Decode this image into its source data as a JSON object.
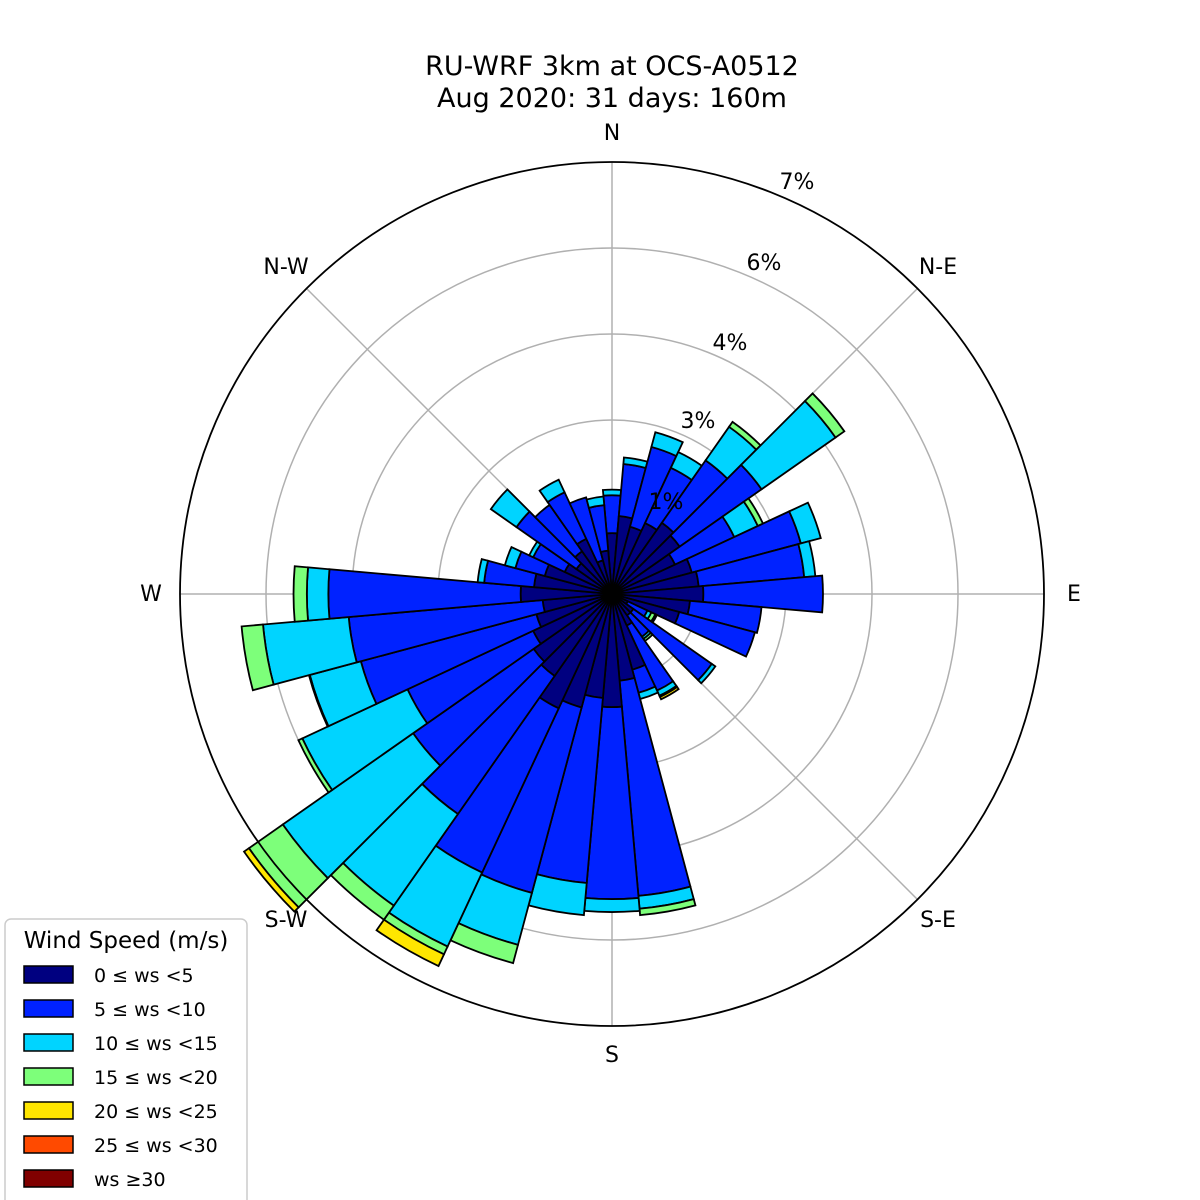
{
  "chart_data": {
    "type": "windrose",
    "title_line1": "RU-WRF 3km at OCS-A0512",
    "title_line2": "Aug 2020: 31 days: 160m",
    "direction_labels": [
      "N",
      "N-E",
      "E",
      "S-E",
      "S",
      "S-W",
      "W",
      "N-W"
    ],
    "ring_labels": [
      "1%",
      "3%",
      "4%",
      "6%",
      "7%"
    ],
    "grid": true,
    "legend_position": "bottom-left",
    "legend_title": "Wind Speed (m/s)",
    "bins": [
      {
        "label": "0 ≤  ws <5",
        "color": "#000080"
      },
      {
        "label": "5 ≤  ws <10",
        "color": "#0022ff"
      },
      {
        "label": "10 ≤  ws <15",
        "color": "#00d4ff"
      },
      {
        "label": "15 ≤  ws <20",
        "color": "#7dff7a"
      },
      {
        "label": "20 ≤  ws <25",
        "color": "#ffe600"
      },
      {
        "label": "25 ≤  ws <30",
        "color": "#ff4a00"
      },
      {
        "label": "ws ≥30",
        "color": "#800000"
      }
    ],
    "sector_width_deg": 10,
    "sectors": [
      {
        "dir": 0,
        "cum": [
          0.7,
          1.27,
          1.4
        ]
      },
      {
        "dir": 10,
        "cum": [
          0.9,
          2.0,
          2.15
        ]
      },
      {
        "dir": 20,
        "cum": [
          0.8,
          2.5,
          2.85
        ]
      },
      {
        "dir": 30,
        "cum": [
          0.9,
          2.2,
          2.6
        ]
      },
      {
        "dir": 40,
        "cum": [
          1.0,
          2.75,
          3.35,
          3.42
        ]
      },
      {
        "dir": 50,
        "cum": [
          0.95,
          3.1,
          4.3,
          4.55
        ]
      },
      {
        "dir": 60,
        "cum": [
          0.8,
          2.1,
          2.7,
          2.83
        ]
      },
      {
        "dir": 70,
        "cum": [
          0.95,
          3.25,
          3.49
        ]
      },
      {
        "dir": 80,
        "cum": [
          1.0,
          3.22,
          3.35
        ]
      },
      {
        "dir": 90,
        "cum": [
          1.1,
          3.43
        ]
      },
      {
        "dir": 100,
        "cum": [
          0.9,
          2.45
        ]
      },
      {
        "dir": 110,
        "cum": [
          0.8,
          2.4
        ]
      },
      {
        "dir": 120,
        "cum": [
          0.2,
          0.45,
          0.5,
          0.55,
          0.57
        ]
      },
      {
        "dir": 130,
        "cum": [
          0.3,
          1.8,
          1.9
        ]
      },
      {
        "dir": 140,
        "cum": [
          0.3,
          0.6,
          0.63,
          0.66
        ]
      },
      {
        "dir": 150,
        "cum": [
          0.4,
          1.45,
          1.58,
          1.61,
          1.67
        ]
      },
      {
        "dir": 160,
        "cum": [
          0.9,
          1.35,
          1.5
        ]
      },
      {
        "dir": 170,
        "cum": [
          1.0,
          5.0,
          5.3,
          5.45
        ]
      },
      {
        "dir": 180,
        "cum": [
          1.6,
          5.05,
          5.35
        ]
      },
      {
        "dir": 190,
        "cum": [
          1.4,
          4.7,
          5.45
        ]
      },
      {
        "dir": 200,
        "cum": [
          1.7,
          5.15,
          6.2,
          6.42
        ]
      },
      {
        "dir": 210,
        "cum": [
          1.9,
          5.1,
          6.5,
          6.6,
          6.75
        ]
      },
      {
        "dir": 220,
        "cum": [
          1.3,
          4.2,
          6.4,
          6.6
        ]
      },
      {
        "dir": 230,
        "cum": [
          1.2,
          3.8,
          6.65,
          7.13,
          7.2
        ]
      },
      {
        "dir": 240,
        "cum": [
          1.0,
          3.6,
          5.9,
          6.0
        ]
      },
      {
        "dir": 250,
        "cum": [
          0.9,
          4.0,
          5.23,
          5.25
        ]
      },
      {
        "dir": 260,
        "cum": [
          0.8,
          4.1,
          6.05,
          6.3
        ]
      },
      {
        "dir": 270,
        "cum": [
          1.1,
          4.55,
          5.05,
          5.36
        ]
      },
      {
        "dir": 280,
        "cum": [
          0.9,
          1.95,
          2.1
        ]
      },
      {
        "dir": 290,
        "cum": [
          0.8,
          1.3,
          1.55
        ]
      },
      {
        "dir": 300,
        "cum": [
          0.6,
          1.0,
          1.1
        ]
      },
      {
        "dir": 310,
        "cum": [
          0.5,
          1.68,
          2.4
        ]
      },
      {
        "dir": 320,
        "cum": [
          0.6,
          1.5
        ]
      },
      {
        "dir": 330,
        "cum": [
          0.7,
          1.58,
          1.9
        ]
      },
      {
        "dir": 340,
        "cum": [
          0.4,
          1.3
        ]
      },
      {
        "dir": 350,
        "cum": [
          0.5,
          1.05,
          1.25
        ]
      }
    ]
  }
}
